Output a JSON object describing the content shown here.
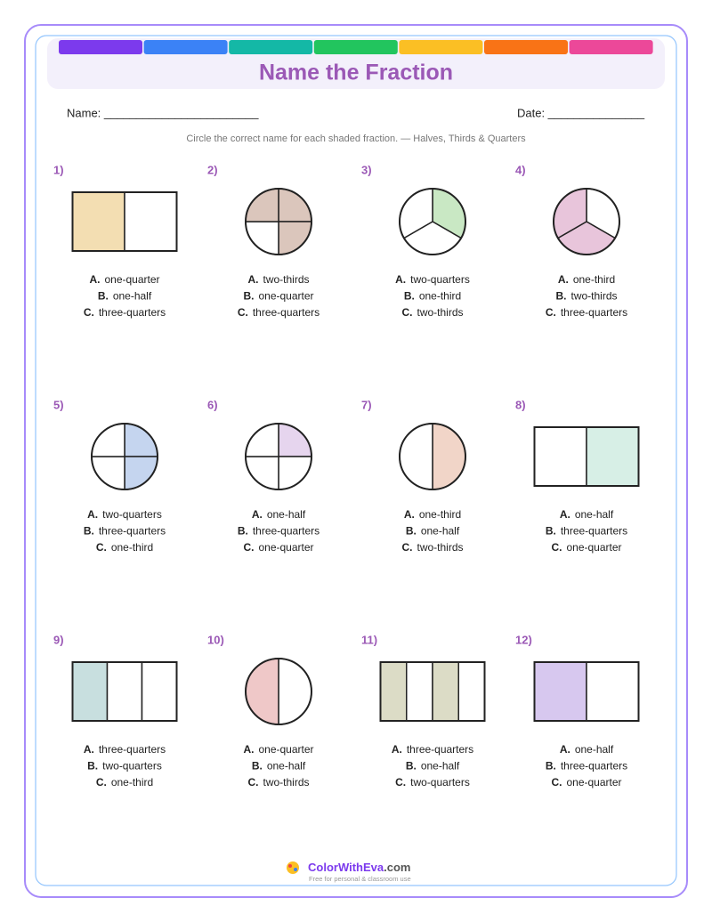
{
  "header": {
    "title": "Name the Fraction"
  },
  "name_label": "Name: ________________________",
  "date_label": "Date: _______________",
  "instructions": "Circle the correct name for each shaded fraction. — Halves, Thirds & Quarters",
  "problems": [
    {
      "number": "1)",
      "options": [
        {
          "letter": "A.",
          "text": "one-quarter"
        },
        {
          "letter": "B.",
          "text": "one-half"
        },
        {
          "letter": "C.",
          "text": "three-quarters"
        }
      ]
    },
    {
      "number": "2)",
      "options": [
        {
          "letter": "A.",
          "text": "two-thirds"
        },
        {
          "letter": "B.",
          "text": "one-quarter"
        },
        {
          "letter": "C.",
          "text": "three-quarters"
        }
      ]
    },
    {
      "number": "3)",
      "options": [
        {
          "letter": "A.",
          "text": "two-quarters"
        },
        {
          "letter": "B.",
          "text": "one-third"
        },
        {
          "letter": "C.",
          "text": "two-thirds"
        }
      ]
    },
    {
      "number": "4)",
      "options": [
        {
          "letter": "A.",
          "text": "one-third"
        },
        {
          "letter": "B.",
          "text": "two-thirds"
        },
        {
          "letter": "C.",
          "text": "three-quarters"
        }
      ]
    },
    {
      "number": "5)",
      "options": [
        {
          "letter": "A.",
          "text": "two-quarters"
        },
        {
          "letter": "B.",
          "text": "three-quarters"
        },
        {
          "letter": "C.",
          "text": "one-third"
        }
      ]
    },
    {
      "number": "6)",
      "options": [
        {
          "letter": "A.",
          "text": "one-half"
        },
        {
          "letter": "B.",
          "text": "three-quarters"
        },
        {
          "letter": "C.",
          "text": "one-quarter"
        }
      ]
    },
    {
      "number": "7)",
      "options": [
        {
          "letter": "A.",
          "text": "one-third"
        },
        {
          "letter": "B.",
          "text": "one-half"
        },
        {
          "letter": "C.",
          "text": "two-thirds"
        }
      ]
    },
    {
      "number": "8)",
      "options": [
        {
          "letter": "A.",
          "text": "one-half"
        },
        {
          "letter": "B.",
          "text": "three-quarters"
        },
        {
          "letter": "C.",
          "text": "one-quarter"
        }
      ]
    },
    {
      "number": "9)",
      "options": [
        {
          "letter": "A.",
          "text": "three-quarters"
        },
        {
          "letter": "B.",
          "text": "two-quarters"
        },
        {
          "letter": "C.",
          "text": "one-third"
        }
      ]
    },
    {
      "number": "10)",
      "options": [
        {
          "letter": "A.",
          "text": "one-quarter"
        },
        {
          "letter": "B.",
          "text": "one-half"
        },
        {
          "letter": "C.",
          "text": "two-thirds"
        }
      ]
    },
    {
      "number": "11)",
      "options": [
        {
          "letter": "A.",
          "text": "three-quarters"
        },
        {
          "letter": "B.",
          "text": "one-half"
        },
        {
          "letter": "C.",
          "text": "two-quarters"
        }
      ]
    },
    {
      "number": "12)",
      "options": [
        {
          "letter": "A.",
          "text": "one-half"
        },
        {
          "letter": "B.",
          "text": "three-quarters"
        },
        {
          "letter": "C.",
          "text": "one-quarter"
        }
      ]
    }
  ],
  "footer": {
    "brand": "ColorWithEva",
    "domain": ".com",
    "tagline": "Free for personal & classroom use"
  }
}
